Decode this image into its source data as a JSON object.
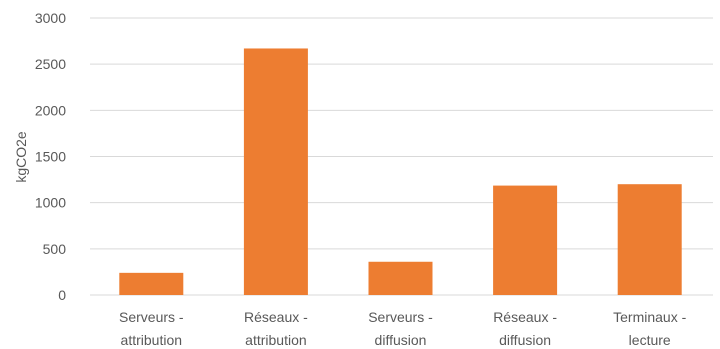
{
  "chart_data": {
    "type": "bar",
    "categories": [
      [
        "Serveurs -",
        "attribution"
      ],
      [
        "Réseaux -",
        "attribution"
      ],
      [
        "Serveurs -",
        "diffusion"
      ],
      [
        "Réseaux -",
        "diffusion"
      ],
      [
        "Terminaux -",
        "lecture"
      ]
    ],
    "values": [
      240,
      2670,
      360,
      1185,
      1200
    ],
    "title": "",
    "xlabel": "",
    "ylabel": "kgCO2e",
    "ylim": [
      0,
      3000
    ],
    "yticks": [
      0,
      500,
      1000,
      1500,
      2000,
      2500,
      3000
    ],
    "grid": true,
    "legend": "none",
    "bar_color": "#ED7D31"
  }
}
